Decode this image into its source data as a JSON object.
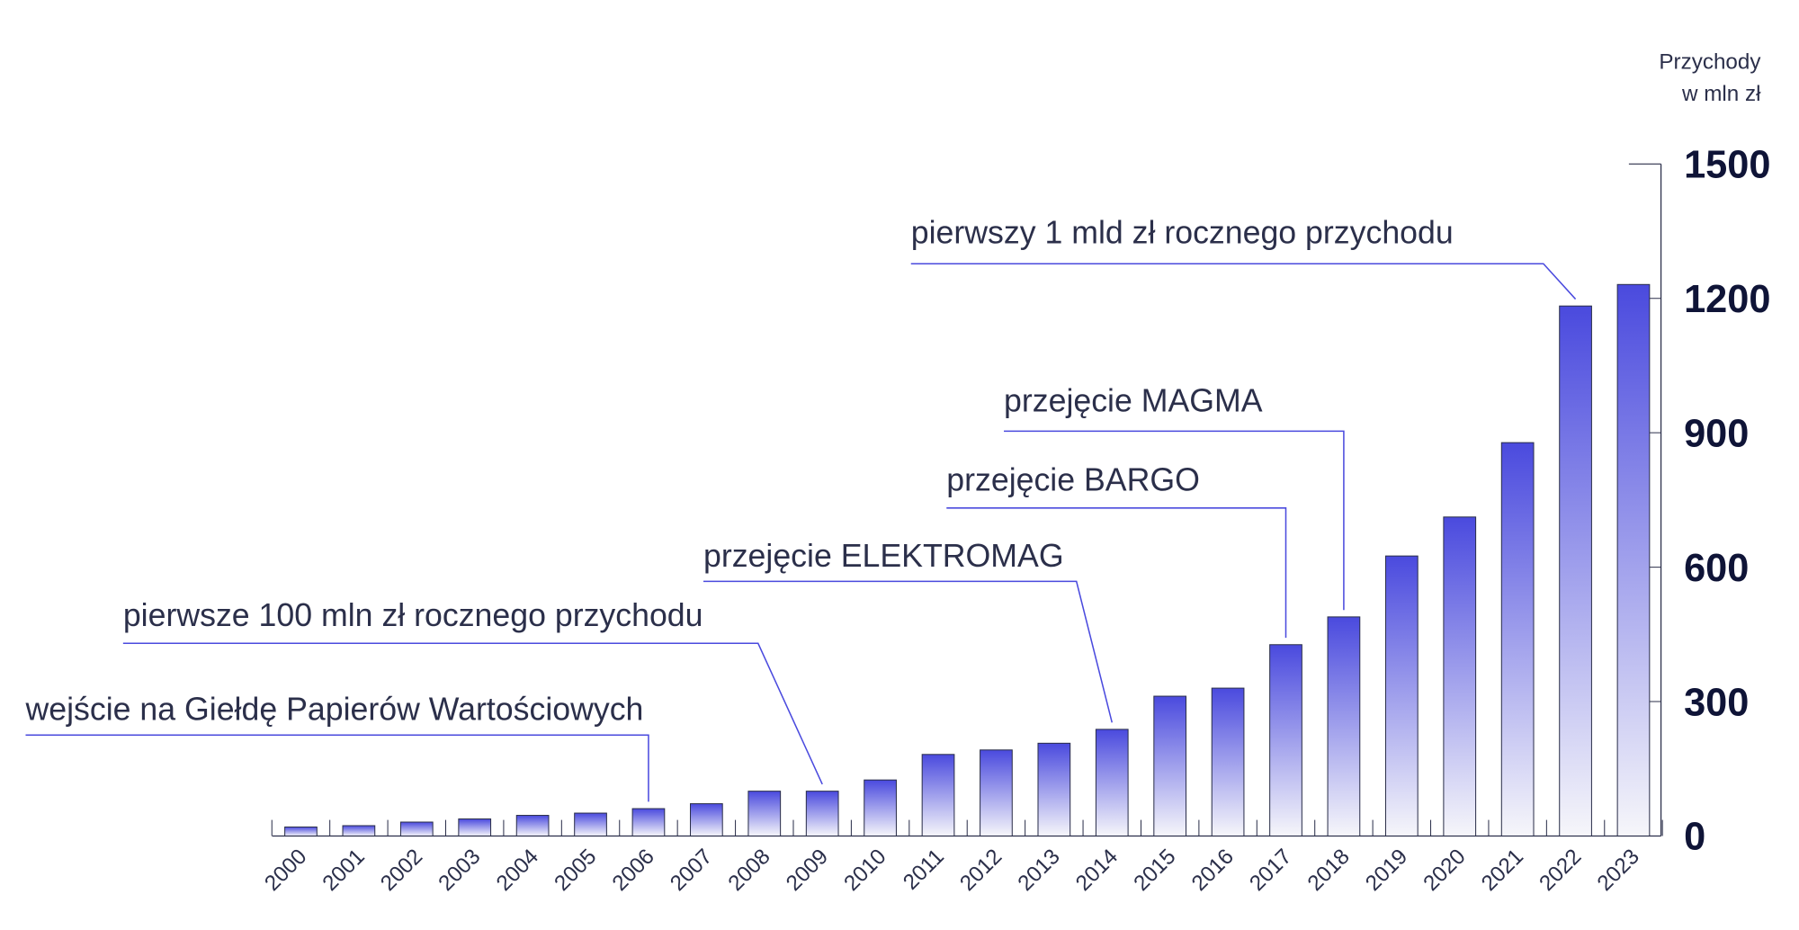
{
  "chart_data": {
    "type": "bar",
    "y_label": [
      "Przychody",
      "w mln zł"
    ],
    "categories": [
      "2000",
      "2001",
      "2002",
      "2003",
      "2004",
      "2005",
      "2006",
      "2007",
      "2008",
      "2009",
      "2010",
      "2011",
      "2012",
      "2013",
      "2014",
      "2015",
      "2016",
      "2017",
      "2018",
      "2019",
      "2020",
      "2021",
      "2022",
      "2023"
    ],
    "values": [
      20,
      23,
      31,
      38,
      46,
      51,
      61,
      72,
      100,
      100,
      125,
      182,
      192,
      207,
      238,
      312,
      330,
      427,
      489,
      625,
      712,
      878,
      1183,
      1231
    ],
    "color": "#4a4ade",
    "ylim": [
      0,
      1500
    ],
    "yticks": [
      0,
      300,
      600,
      900,
      1200,
      1500
    ],
    "annotations": [
      {
        "text": "wejście na Giełdę Papierów Wartościowych"
      },
      {
        "text": "pierwsze 100 mln zł rocznego przychodu"
      },
      {
        "text": "przejęcie ELEKTROMAG"
      },
      {
        "text": "przejęcie BARGO"
      },
      {
        "text": "przejęcie MAGMA"
      },
      {
        "text": "pierwszy 1 mld zł rocznego przychodu"
      }
    ]
  }
}
